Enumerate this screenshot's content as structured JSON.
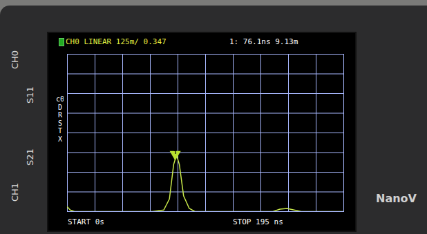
{
  "device": {
    "labels": [
      "CH0",
      "S11",
      "S21",
      "CH1"
    ],
    "brand": "NanoV",
    "menu": [
      "c0",
      "D",
      "R",
      "S",
      "T",
      "X"
    ]
  },
  "chart_data": {
    "type": "line",
    "title": "CH0 LINEAR 125m/ 0.347",
    "annotations": [
      "1: 76.1ns 9.13m",
      "START 0s",
      "STOP 195 ns"
    ],
    "x": [
      0,
      2,
      5,
      60,
      68,
      72,
      75,
      77,
      79,
      82,
      86,
      90,
      145,
      150,
      155,
      160,
      165,
      195
    ],
    "series": [
      {
        "name": "CH0",
        "color": "#c8e84a",
        "values": [
          0.03,
          0.01,
          0,
          0,
          0.01,
          0.08,
          0.3,
          0.36,
          0.3,
          0.1,
          0.02,
          0,
          0,
          0.015,
          0.02,
          0.01,
          0,
          0
        ]
      }
    ],
    "markers": [
      {
        "label": "1",
        "x": 76.1,
        "y": 0.347,
        "color": "#b8e030"
      }
    ],
    "xlim": [
      0,
      195
    ],
    "xticks": [
      0,
      19.5,
      39,
      58.5,
      78,
      97.5,
      117,
      136.5,
      156,
      175.5,
      195
    ],
    "ylim": [
      0,
      1
    ],
    "yticks": [
      0,
      0.125,
      0.25,
      0.375,
      0.5,
      0.625,
      0.75,
      0.875,
      1
    ],
    "grid": true,
    "tick_labels": false
  }
}
